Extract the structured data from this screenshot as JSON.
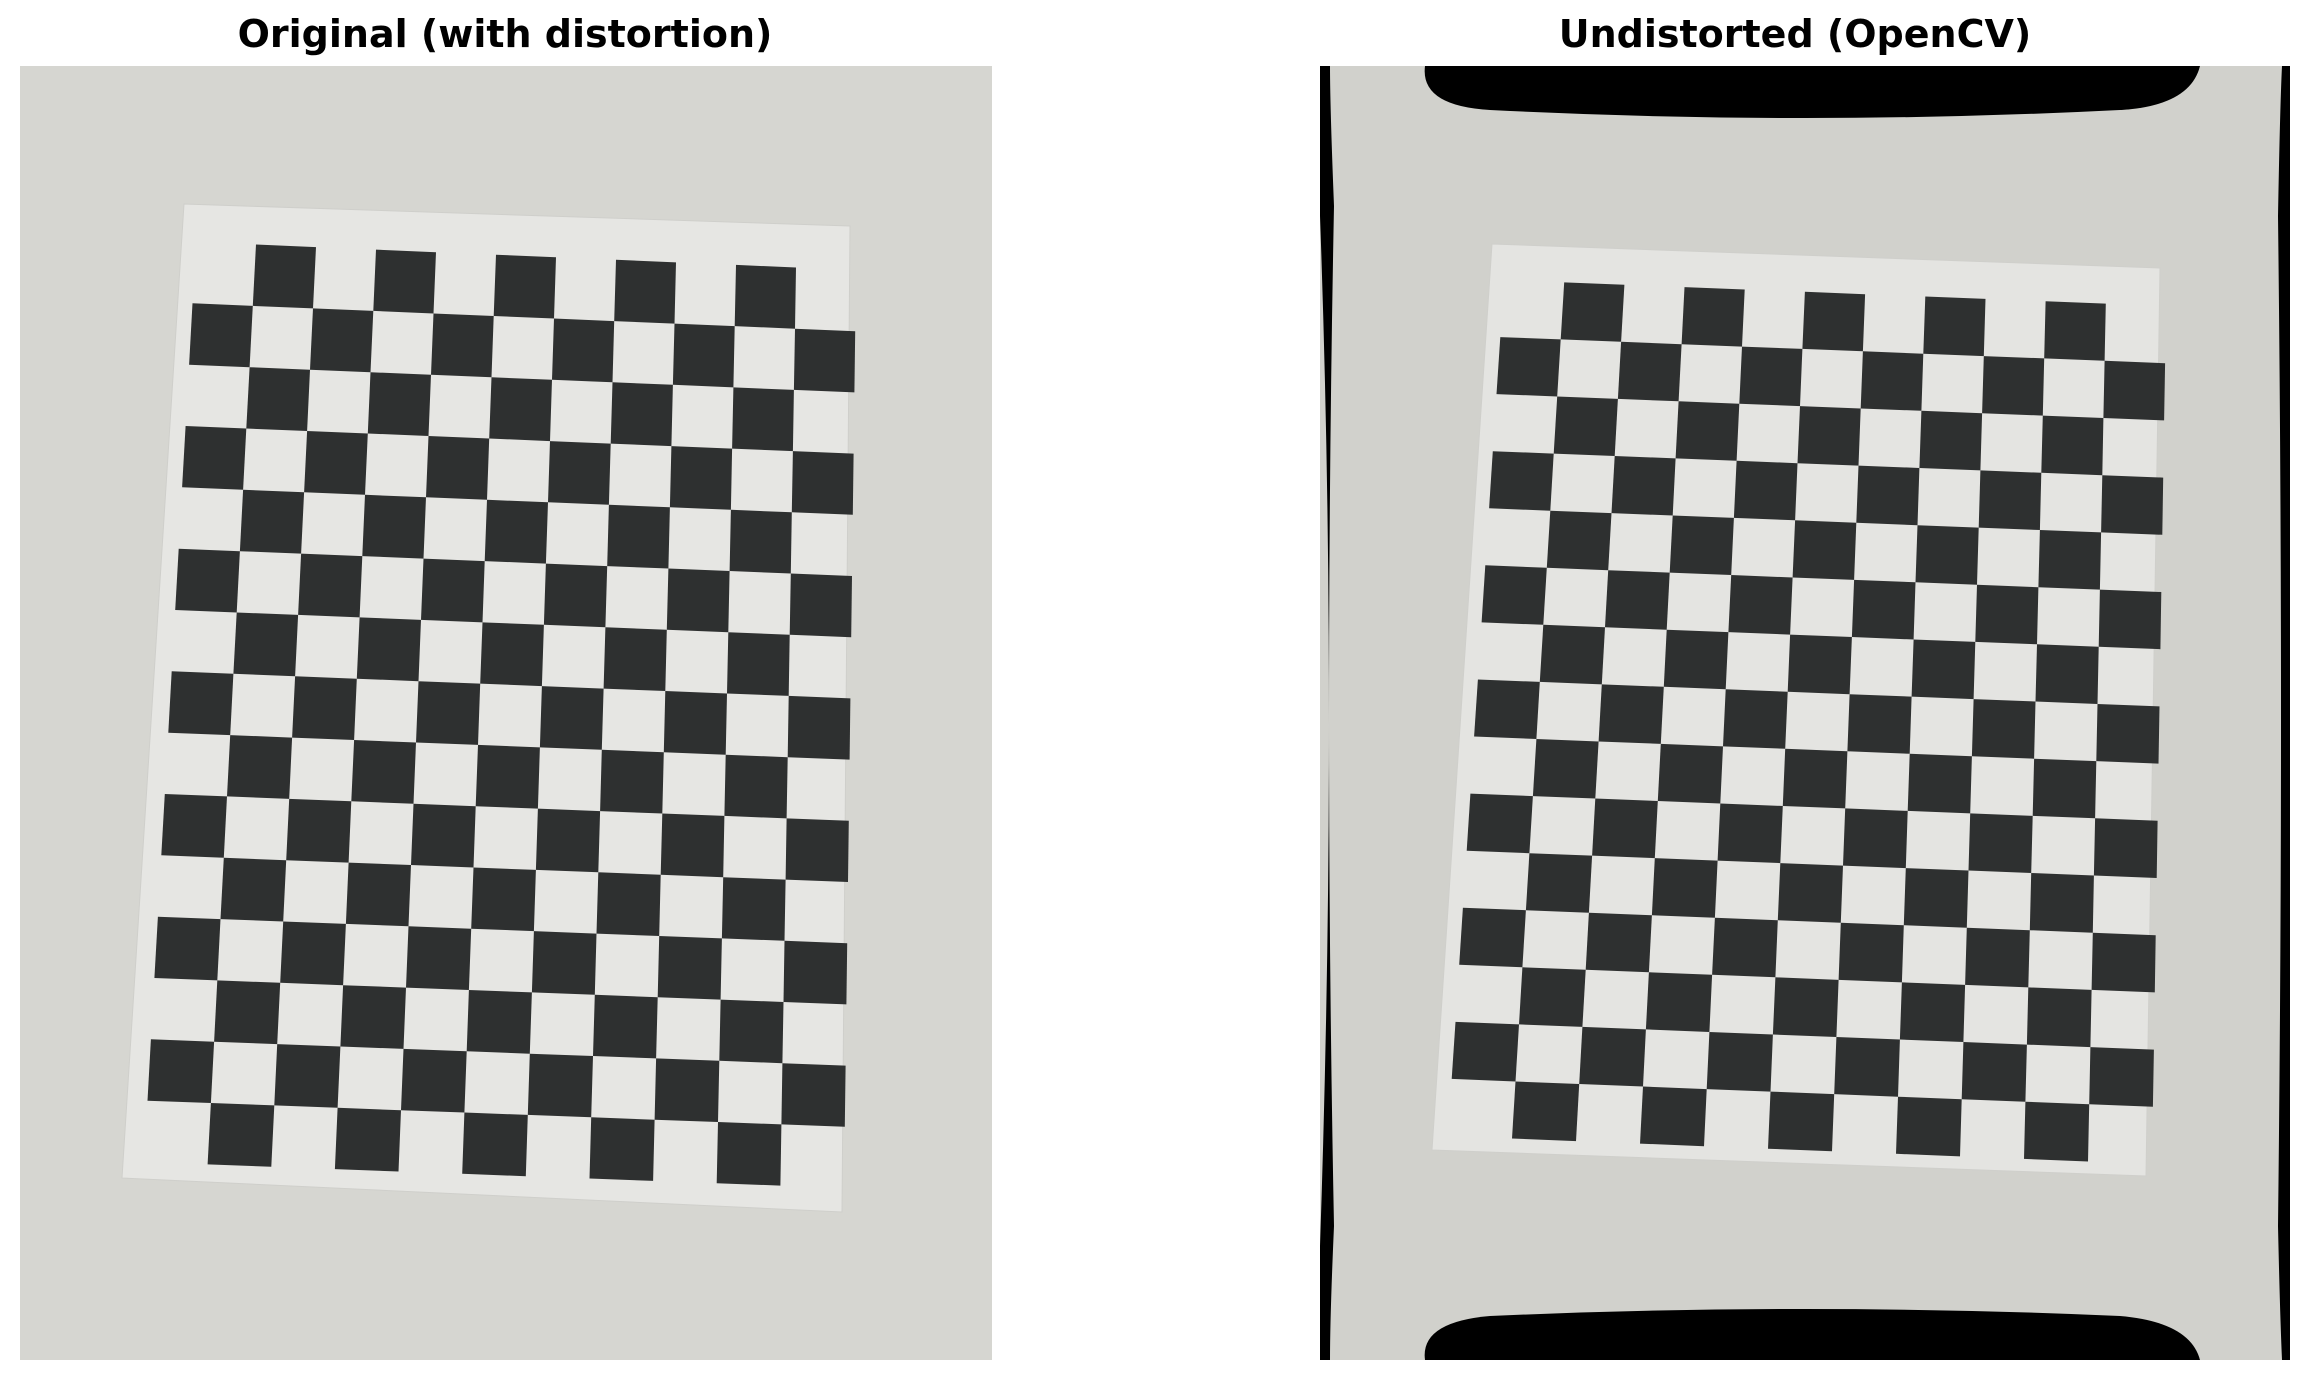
{
  "figure": {
    "panels": [
      {
        "title": "Original (with distortion)",
        "image_description_icon": "checkerboard-photo",
        "background_color": "#d6d6d1",
        "paper_color": "#e6e6e3",
        "square_color": "#2e3030"
      },
      {
        "title": "Undistorted (OpenCV)",
        "image_description_icon": "checkerboard-photo-undistorted",
        "background_color": "#d1d1cc",
        "paper_color": "#e4e4e1",
        "square_color": "#2e3030",
        "border_color": "#000000"
      }
    ]
  }
}
